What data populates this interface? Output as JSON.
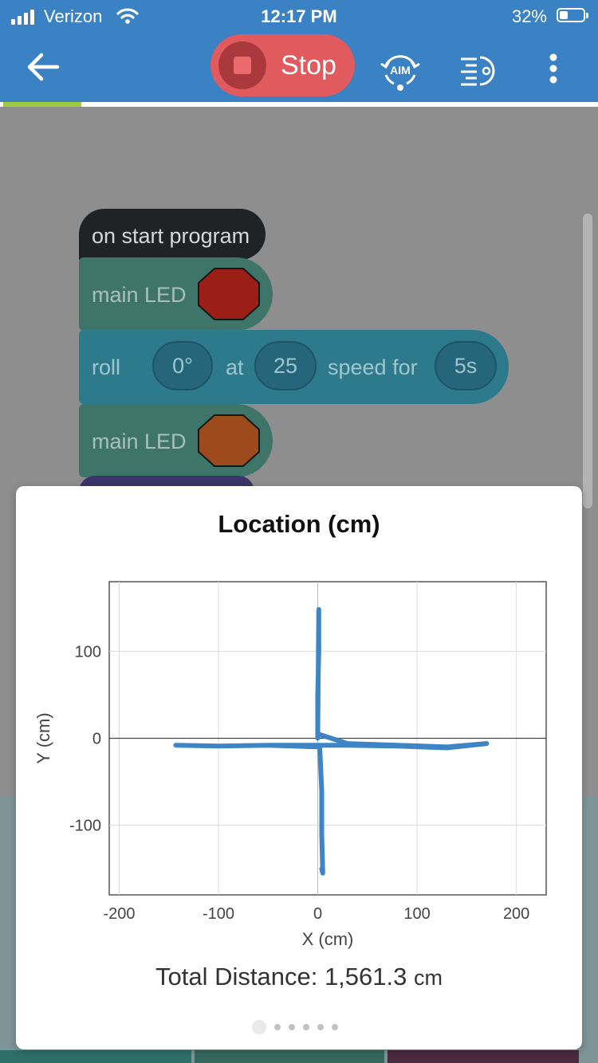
{
  "status_bar": {
    "carrier": "Verizon",
    "time": "12:17 PM",
    "battery_percent_text": "32%",
    "battery_level": 0.32
  },
  "toolbar": {
    "back_icon": "arrow-left-icon",
    "stop_label": "Stop",
    "aim_label": "AIM",
    "drive_icon": "drive-icon",
    "more_icon": "kebab-menu-icon",
    "colors": {
      "bar": "#3a82c4",
      "stop": "#e05a5e"
    }
  },
  "program_progress": 0.13,
  "blocks": {
    "start": {
      "label": "on start program"
    },
    "led1": {
      "label": "main LED",
      "color": "#9b1e17"
    },
    "roll": {
      "label_roll": "roll",
      "heading": "0°",
      "label_at": "at",
      "speed": "25",
      "label_speed_for": "speed for",
      "duration": "5s"
    },
    "led2": {
      "label": "main LED",
      "color": "#9d4a1c"
    }
  },
  "location_modal": {
    "title": "Location (cm)",
    "total_distance_label": "Total Distance:",
    "total_distance_value": "1,561.3",
    "total_distance_unit": "cm",
    "page_count": 6,
    "active_page": 0
  },
  "chart_data": {
    "type": "line",
    "title": "Location (cm)",
    "xlabel": "X (cm)",
    "ylabel": "Y (cm)",
    "xlim": [
      -210,
      230
    ],
    "ylim": [
      -180,
      180
    ],
    "x_ticks": [
      -200,
      -100,
      0,
      100,
      200
    ],
    "y_ticks": [
      100,
      0,
      -100
    ],
    "x_tick_labels": [
      "-200",
      "-100",
      "0",
      "100",
      "200"
    ],
    "y_tick_labels": [
      "100",
      "0",
      "-100"
    ],
    "grid": true,
    "series": [
      {
        "color": "#3d85c6",
        "x": [
          0,
          0,
          1,
          1,
          0,
          30,
          80,
          130,
          170,
          130,
          80,
          30,
          2,
          -50,
          -100,
          -143,
          -100,
          -50,
          2,
          4,
          4,
          5,
          4
        ],
        "y": [
          0,
          50,
          100,
          148,
          5,
          -6,
          -8,
          -10,
          -6,
          -11,
          -9,
          -8,
          -8,
          -8,
          -9,
          -8,
          -9,
          -8,
          -10,
          -60,
          -110,
          -155,
          -150
        ]
      }
    ]
  }
}
